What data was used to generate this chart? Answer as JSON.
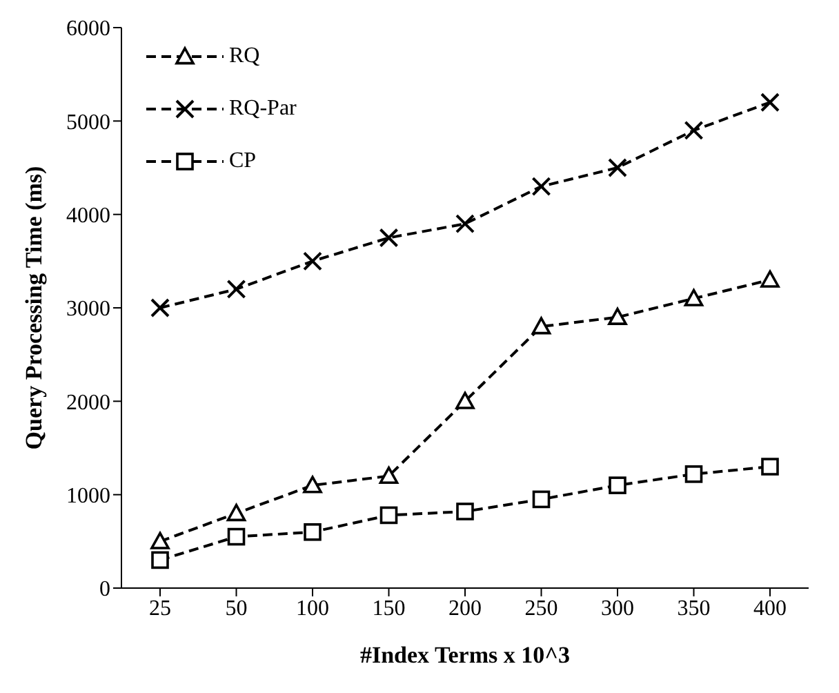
{
  "chart_data": {
    "type": "line",
    "xlabel": "#Index Terms x 10^3",
    "ylabel": "Query Processing Time (ms)",
    "categories": [
      "25",
      "50",
      "100",
      "150",
      "200",
      "250",
      "300",
      "350",
      "400"
    ],
    "series": [
      {
        "name": "RQ",
        "color": "#000000",
        "marker": "triangle",
        "values": [
          500,
          800,
          1100,
          1200,
          2000,
          2800,
          2900,
          3100,
          3300
        ]
      },
      {
        "name": "RQ-Par",
        "color": "#000000",
        "marker": "cross",
        "values": [
          3000,
          3200,
          3500,
          3750,
          3900,
          4300,
          4500,
          4900,
          5200
        ]
      },
      {
        "name": "CP",
        "color": "#000000",
        "marker": "square",
        "values": [
          300,
          550,
          600,
          780,
          820,
          950,
          1100,
          1220,
          1300
        ]
      }
    ],
    "ylim": [
      0,
      6000
    ],
    "yticks": [
      0,
      1000,
      2000,
      3000,
      4000,
      5000,
      6000
    ],
    "grid": false,
    "legend": "top left",
    "line_style": "dashed"
  }
}
